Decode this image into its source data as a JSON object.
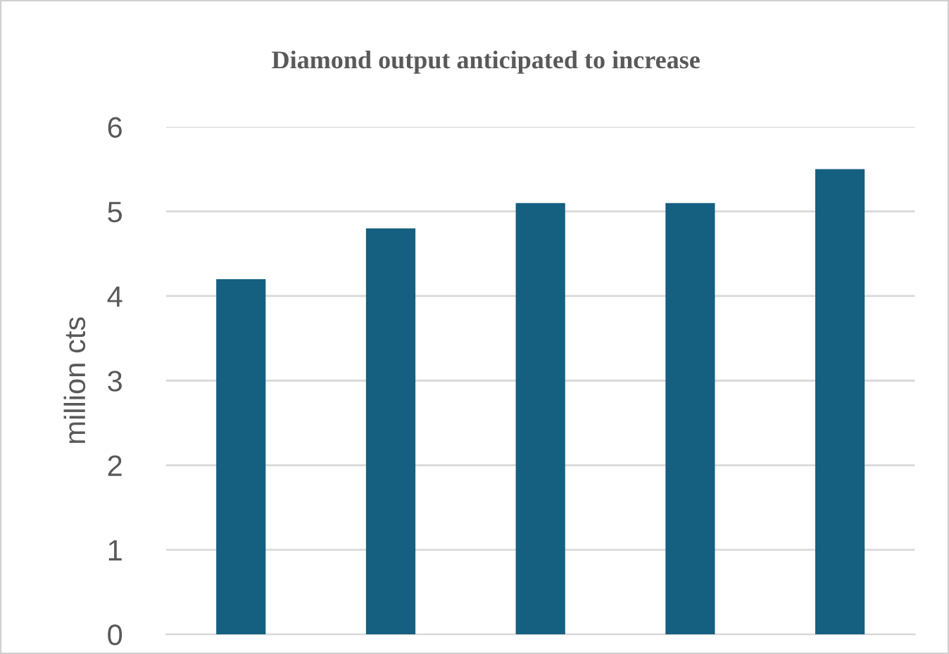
{
  "chart_data": {
    "type": "bar",
    "title": "Diamond output anticipated to increase",
    "ylabel": "million cts",
    "categories": [
      null,
      null,
      null,
      null,
      null
    ],
    "values": [
      4.2,
      4.8,
      5.1,
      5.1,
      5.5
    ],
    "color": "#155f80",
    "ylim": [
      0,
      6
    ],
    "yticks": [
      0,
      1,
      2,
      3,
      4,
      5,
      6
    ],
    "grid": "y",
    "tick_labels": "y",
    "legend": false
  }
}
